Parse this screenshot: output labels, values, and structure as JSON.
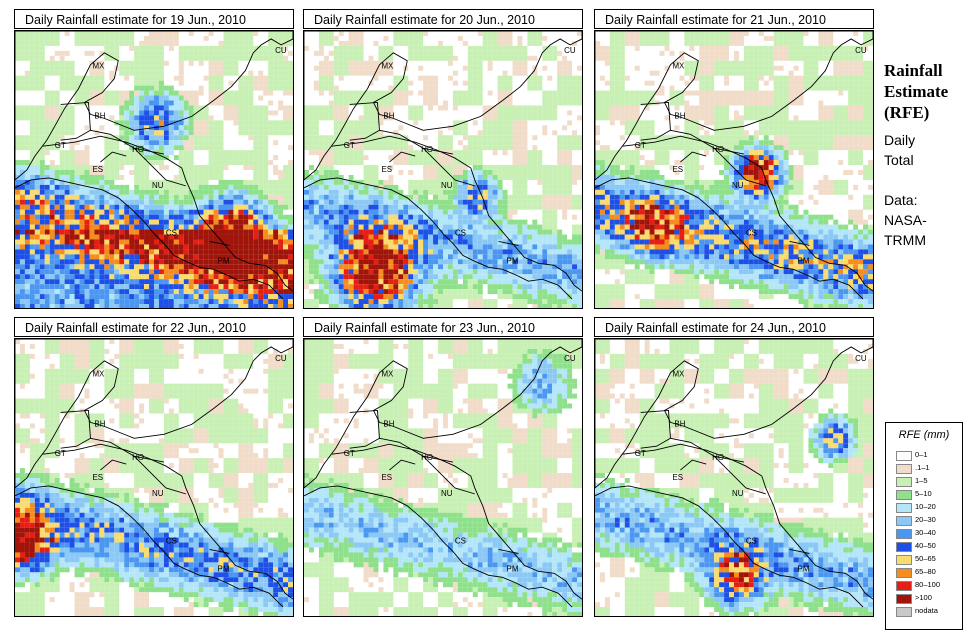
{
  "panels": [
    {
      "title": "Daily Rainfall estimate for  19 Jun., 2010",
      "pattern": "heavy-east-south"
    },
    {
      "title": "Daily Rainfall estimate for  20 Jun., 2010",
      "pattern": "heavy-southwest"
    },
    {
      "title": "Daily Rainfall estimate for  21 Jun., 2010",
      "pattern": "heavy-center"
    },
    {
      "title": "Daily Rainfall estimate for  22 Jun., 2010",
      "pattern": "west-edge"
    },
    {
      "title": "Daily Rainfall estimate for  23 Jun., 2010",
      "pattern": "light"
    },
    {
      "title": "Daily Rainfall estimate for  24 Jun., 2010",
      "pattern": "scattered-south"
    }
  ],
  "country_labels": [
    "MX",
    "CU",
    "BH",
    "GT",
    "HO",
    "ES",
    "NU",
    "CS",
    "PM"
  ],
  "side": {
    "title_line1": "Rainfall",
    "title_line2": "Estimate",
    "title_line3": "(RFE)",
    "period_line1": "Daily",
    "period_line2": "Total",
    "source_line1": "Data:",
    "source_line2": "NASA-",
    "source_line3": "TRMM"
  },
  "legend": {
    "title": "RFE (mm)",
    "items": [
      {
        "label": "0–1",
        "color": "#ffffff"
      },
      {
        "label": ".1–1",
        "color": "#f0dcc8"
      },
      {
        "label": "1–5",
        "color": "#c8f0b4"
      },
      {
        "label": "5–10",
        "color": "#8ee08a"
      },
      {
        "label": "10–20",
        "color": "#b4e6fa"
      },
      {
        "label": "20–30",
        "color": "#8cc8f5"
      },
      {
        "label": "30–40",
        "color": "#4a96f0"
      },
      {
        "label": "40–50",
        "color": "#1e50e6"
      },
      {
        "label": "50–65",
        "color": "#fadc6e"
      },
      {
        "label": "65–80",
        "color": "#f58c1e"
      },
      {
        "label": "80–100",
        "color": "#e61e14"
      },
      {
        "label": ">100",
        "color": "#a0140a"
      },
      {
        "label": "nodata",
        "color": "#c8c8c8"
      }
    ]
  }
}
